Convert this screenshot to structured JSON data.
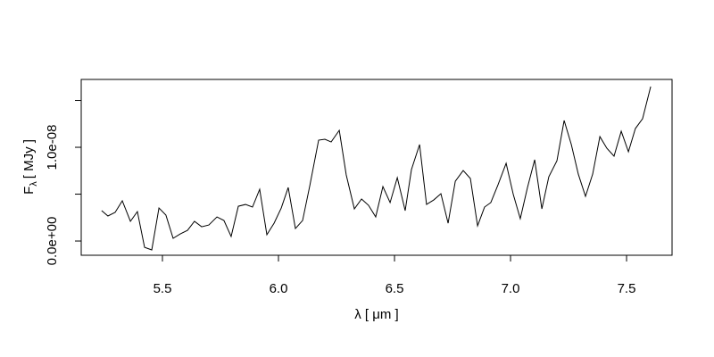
{
  "chart_data": {
    "type": "line",
    "x_label": "λ [ μm ]",
    "y_label": {
      "main": "F",
      "sub": "λ",
      "unit": "[ MJy ]"
    },
    "x": [
      5.238,
      5.265,
      5.296,
      5.327,
      5.362,
      5.392,
      5.423,
      5.454,
      5.485,
      5.515,
      5.546,
      5.577,
      5.608,
      5.638,
      5.669,
      5.7,
      5.735,
      5.765,
      5.796,
      5.827,
      5.858,
      5.888,
      5.919,
      5.95,
      5.981,
      6.012,
      6.042,
      6.073,
      6.104,
      6.135,
      6.173,
      6.2,
      6.227,
      6.262,
      6.292,
      6.327,
      6.358,
      6.388,
      6.419,
      6.45,
      6.481,
      6.512,
      6.546,
      6.573,
      6.608,
      6.638,
      6.669,
      6.7,
      6.731,
      6.762,
      6.796,
      6.827,
      6.858,
      6.888,
      6.915,
      6.946,
      6.981,
      7.012,
      7.042,
      7.073,
      7.104,
      7.135,
      7.165,
      7.2,
      7.231,
      7.262,
      7.292,
      7.323,
      7.354,
      7.385,
      7.415,
      7.446,
      7.477,
      7.508,
      7.538,
      7.569,
      7.604
    ],
    "series": [
      {
        "color": "#000000",
        "values": [
          3.24e-09,
          2.67e-09,
          3.05e-09,
          4.29e-09,
          2.1e-09,
          3.14e-09,
          -6.7e-10,
          -9.5e-10,
          3.52e-09,
          2.76e-09,
          2.9e-10,
          7.6e-10,
          1.14e-09,
          2.1e-09,
          1.52e-09,
          1.71e-09,
          2.57e-09,
          2.19e-09,
          4.8e-10,
          3.71e-09,
          3.9e-09,
          3.62e-09,
          5.52e-09,
          6.7e-10,
          1.9e-09,
          3.52e-09,
          5.71e-09,
          1.33e-09,
          2.19e-09,
          5.9e-09,
          1.076e-08,
          1.086e-08,
          1.057e-08,
          1.181e-08,
          7.05e-09,
          3.43e-09,
          4.48e-09,
          3.81e-09,
          2.57e-09,
          5.81e-09,
          4.1e-09,
          6.76e-09,
          3.24e-09,
          7.62e-09,
          1.029e-08,
          3.9e-09,
          4.38e-09,
          5.05e-09,
          1.9e-09,
          6.38e-09,
          7.52e-09,
          6.67e-09,
          1.62e-09,
          3.62e-09,
          4.1e-09,
          6e-09,
          8.29e-09,
          4.95e-09,
          2.38e-09,
          5.71e-09,
          8.67e-09,
          3.43e-09,
          6.86e-09,
          8.57e-09,
          1.286e-08,
          1.029e-08,
          7.14e-09,
          4.76e-09,
          7.14e-09,
          1.114e-08,
          9.9e-09,
          9.05e-09,
          1.171e-08,
          9.52e-09,
          1.2e-08,
          1.305e-08,
          1.648e-08
        ]
      }
    ],
    "xlim": [
      5.15,
      7.696
    ],
    "ylim": [
      -1.52e-09,
      1.724e-08
    ],
    "xticks": [
      5.5,
      {
        "value": 6,
        "label": "6.0"
      },
      6.5,
      {
        "value": 7,
        "label": "7.0"
      },
      7.5
    ],
    "yticks": [
      {
        "value": 0,
        "label": "0.0e+00"
      },
      {
        "value": 5e-09,
        "label": null
      },
      {
        "value": 1e-08,
        "label": "1.0e-08"
      },
      {
        "value": 1.5e-08,
        "label": null
      }
    ]
  }
}
